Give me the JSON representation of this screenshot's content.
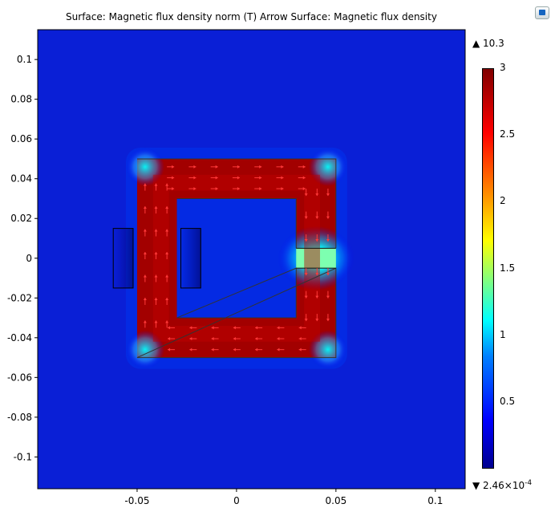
{
  "title": "Surface: Magnetic flux density norm (T)  Arrow Surface: Magnetic flux density",
  "chart_data": {
    "type": "heatmap",
    "title": "Surface: Magnetic flux density norm (T)  Arrow Surface: Magnetic flux density",
    "xlabel": "",
    "ylabel": "",
    "xlim": [
      -0.1,
      0.115
    ],
    "ylim": [
      -0.116,
      0.115
    ],
    "x_ticks": [
      "-0.05",
      "0",
      "0.05",
      "0.1"
    ],
    "y_ticks": [
      "0.1",
      "0.08",
      "0.06",
      "0.04",
      "0.02",
      "0",
      "-0.02",
      "-0.04",
      "-0.06",
      "-0.08",
      "-0.1"
    ],
    "x_tick_values": [
      -0.05,
      0,
      0.05,
      0.1
    ],
    "y_tick_values": [
      0.1,
      0.08,
      0.06,
      0.04,
      0.02,
      0,
      -0.02,
      -0.04,
      -0.06,
      -0.08,
      -0.1
    ],
    "colorbar": {
      "min": 0.000246,
      "max": 3,
      "ticks": [
        "3",
        "2.5",
        "2",
        "1.5",
        "1",
        "0.5"
      ],
      "tick_values": [
        3,
        2.5,
        2,
        1.5,
        1,
        0.5
      ],
      "colormap": "jet"
    },
    "max_label": "10.3",
    "min_label_base": "2.46×10",
    "min_label_exp": "-4",
    "core": {
      "outer": [
        -0.05,
        -0.05,
        0.05,
        0.05
      ],
      "inner": [
        -0.03,
        -0.03,
        0.03,
        0.03
      ],
      "air_gap": [
        0.03,
        -0.005,
        0.05,
        0.005
      ],
      "core_flux_density": 2.9
    },
    "coils": [
      [
        -0.062,
        -0.015,
        -0.052,
        0.015
      ],
      [
        -0.028,
        -0.015,
        -0.018,
        0.015
      ]
    ],
    "arrow_color": "#ff3a3a",
    "background_color": "#0a1fd6"
  }
}
